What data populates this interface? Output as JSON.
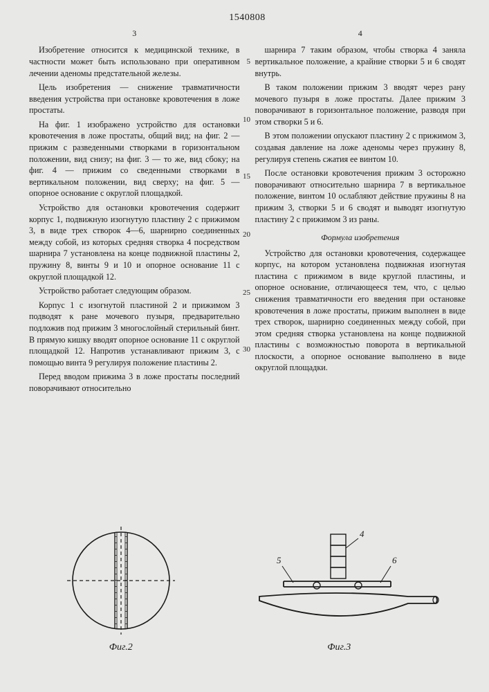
{
  "document_number": "1540808",
  "page_left_num": "3",
  "page_right_num": "4",
  "gutter_numbers": {
    "n5": "5",
    "n10": "10",
    "n15": "15",
    "n20": "20",
    "n25": "25",
    "n30": "30"
  },
  "left_paragraphs": [
    "Изобретение относится к медицинской технике, в частности может быть использовано при оперативном лечении аденомы предстательной железы.",
    "Цель изобретения — снижение травматичности введения устройства при остановке кровотечения в ложе простаты.",
    "На фиг. 1 изображено устройство для остановки кровотечения в ложе простаты, общий вид; на фиг. 2 — прижим с разведенными створками в горизонтальном положении, вид снизу; на фиг. 3 — то же, вид сбоку; на фиг. 4 — прижим со сведенными створками в вертикальном положении, вид сверху; на фиг. 5 — опорное основание с округлой площадкой.",
    "Устройство для остановки кровотечения содержит корпус 1, подвижную изогнутую пластину 2 с прижимом 3, в виде трех створок 4—6, шарнирно соединенных между собой, из которых средняя створка 4 посредством шарнира 7 установлена на конце подвижной пластины 2, пружину 8, винты 9 и 10 и опорное основание 11 с округлой площадкой 12.",
    "Устройство работает следующим образом.",
    "Корпус 1 с изогнутой пластиной 2 и прижимом 3 подводят к ране мочевого пузыря, предварительно подложив под прижим 3 многослойный стерильный бинт. В прямую кишку вводят опорное основание 11 с округлой площадкой 12. Напротив устанавливают прижим 3, с помощью винта 9 регулируя положение пластины 2.",
    "Перед вводом прижима 3 в ложе простаты последний поворачивают относительно"
  ],
  "right_paragraphs": [
    "шарнира 7 таким образом, чтобы створка 4 заняла вертикальное положение, а крайние створки 5 и 6 сводят внутрь.",
    "В таком положении прижим 3 вводят через рану мочевого пузыря в ложе простаты. Далее прижим 3 поворачивают в горизонтальное положение, разводя при этом створки 5 и 6.",
    "В этом положении опускают пластину 2 с прижимом 3, создавая давление на ложе аденомы через пружину 8, регулируя степень сжатия ее винтом 10.",
    "После остановки кровотечения прижим 3 осторожно поворачивают относительно шарнира 7 в вертикальное положение, винтом 10 ослабляют действие пружины 8 на прижим 3, створки 5 и 6 сводят и выводят изогнутую пластину 2 с прижимом 3 из раны."
  ],
  "formula_title": "Формула изобретения",
  "formula_text": "Устройство для остановки кровотечения, содержащее корпус, на котором установлена подвижная изогнутая пластина с прижимом в виде круглой пластины, и опорное основание, отличающееся тем, что, с целью снижения травматичности его введения при остановке кровотечения в ложе простаты, прижим выполнен в виде трех створок, шарнирно соединенных между собой, при этом средняя створка установлена на конце подвижной пластины с возможностью поворота в вертикальной плоскости, а опорное основание выполнено в виде округлой площадки.",
  "fig2": {
    "label": "Фиг.2",
    "circle_r": 70,
    "stroke": "#1a1a1a",
    "stroke_width": 1.6,
    "dash": "5,4",
    "band_half_width": 9
  },
  "fig3": {
    "label": "Фиг.3",
    "stroke": "#1a1a1a",
    "stroke_width": 1.8,
    "labels": {
      "l5": "5",
      "l4": "4",
      "l6": "6"
    }
  }
}
